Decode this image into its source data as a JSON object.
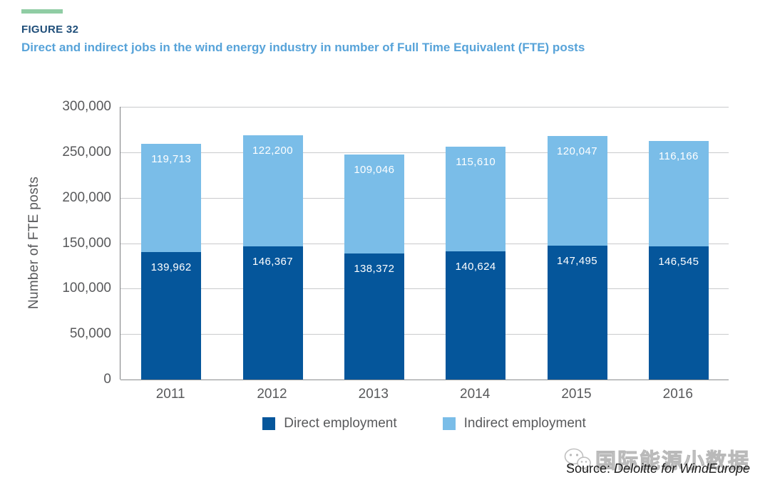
{
  "header": {
    "figure_label": "FIGURE 32",
    "title": "Direct and indirect jobs in the wind energy industry in number of Full Time Equivalent (FTE) posts",
    "accent_dash_color": "#90CDA4",
    "figure_label_color": "#1F4E79",
    "title_color": "#57A3D9"
  },
  "chart_data": {
    "type": "bar",
    "stacked": true,
    "categories": [
      "2011",
      "2012",
      "2013",
      "2014",
      "2015",
      "2016"
    ],
    "series": [
      {
        "name": "Direct employment",
        "color": "#05569B",
        "values": [
          139962,
          146367,
          138372,
          140624,
          147495,
          146545
        ]
      },
      {
        "name": "Indirect employment",
        "color": "#7ABDE8",
        "values": [
          119713,
          122200,
          109046,
          115610,
          120047,
          116166
        ]
      }
    ],
    "ylabel": "Number of FTE posts",
    "xlabel": "",
    "ylim": [
      0,
      300000
    ],
    "ytick_interval": 50000,
    "ytick_labels": [
      "300,000",
      "250,000",
      "200,000",
      "150,000",
      "100,000",
      "50,000",
      "0"
    ],
    "grid": true,
    "legend_position": "bottom",
    "bar_value_labels": true,
    "value_label_color": "#ffffff"
  },
  "footer": {
    "source_prefix": "Source: ",
    "source_name": "Deloitte for WindEurope",
    "watermark_text": "国际能源小数据",
    "watermark_icon": "wechat-icon"
  }
}
